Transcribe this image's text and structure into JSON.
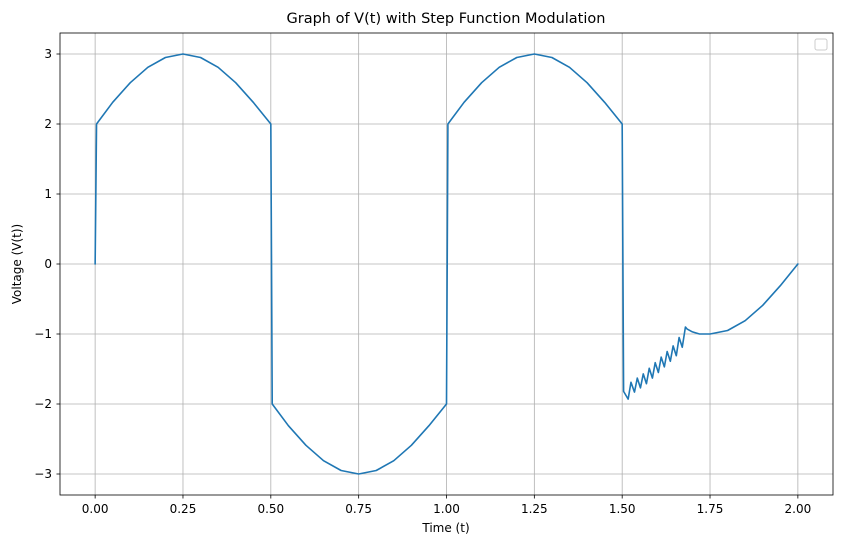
{
  "chart_data": {
    "type": "line",
    "title": "Graph of V(t) with Step Function Modulation",
    "xlabel": "Time (t)",
    "ylabel": "Voltage (V(t))",
    "xlim": [
      -0.1,
      2.1
    ],
    "ylim": [
      -3.3,
      3.3
    ],
    "x_ticks": [
      0.0,
      0.25,
      0.5,
      0.75,
      1.0,
      1.25,
      1.5,
      1.75,
      2.0
    ],
    "x_tick_labels": [
      "0.00",
      "0.25",
      "0.50",
      "0.75",
      "1.00",
      "1.25",
      "1.50",
      "1.75",
      "2.00"
    ],
    "y_ticks": [
      -3,
      -2,
      -1,
      0,
      1,
      2,
      3
    ],
    "y_tick_labels": [
      "−3",
      "−2",
      "−1",
      "0",
      "1",
      "2",
      "3"
    ],
    "grid": true,
    "legend": {
      "placement": "top-right",
      "entries": []
    },
    "series": [
      {
        "color": "#1f77b4",
        "x": [
          0.0,
          0.004,
          0.05,
          0.1,
          0.15,
          0.2,
          0.25,
          0.3,
          0.35,
          0.4,
          0.45,
          0.5,
          0.504,
          0.55,
          0.6,
          0.65,
          0.7,
          0.75,
          0.8,
          0.85,
          0.9,
          0.95,
          1.0,
          1.004,
          1.05,
          1.1,
          1.15,
          1.2,
          1.25,
          1.3,
          1.35,
          1.4,
          1.45,
          1.5,
          1.504,
          1.517,
          1.525,
          1.535,
          1.543,
          1.552,
          1.56,
          1.569,
          1.577,
          1.586,
          1.594,
          1.603,
          1.611,
          1.62,
          1.628,
          1.637,
          1.645,
          1.654,
          1.662,
          1.671,
          1.68,
          1.685,
          1.7,
          1.72,
          1.75,
          1.8,
          1.85,
          1.9,
          1.95,
          2.0
        ],
        "y": [
          0.0,
          2.0,
          2.31,
          2.59,
          2.81,
          2.95,
          3.0,
          2.95,
          2.81,
          2.59,
          2.31,
          2.0,
          -2.0,
          -2.31,
          -2.59,
          -2.81,
          -2.95,
          -3.0,
          -2.95,
          -2.81,
          -2.59,
          -2.31,
          -2.0,
          2.0,
          2.31,
          2.59,
          2.81,
          2.95,
          3.0,
          2.95,
          2.81,
          2.59,
          2.31,
          2.0,
          -1.82,
          -1.93,
          -1.69,
          -1.83,
          -1.63,
          -1.77,
          -1.57,
          -1.71,
          -1.49,
          -1.63,
          -1.41,
          -1.55,
          -1.33,
          -1.47,
          -1.25,
          -1.39,
          -1.17,
          -1.31,
          -1.05,
          -1.19,
          -0.9,
          -0.93,
          -0.97,
          -1.0,
          -1.0,
          -0.95,
          -0.81,
          -0.59,
          -0.31,
          0.0
        ]
      }
    ]
  }
}
